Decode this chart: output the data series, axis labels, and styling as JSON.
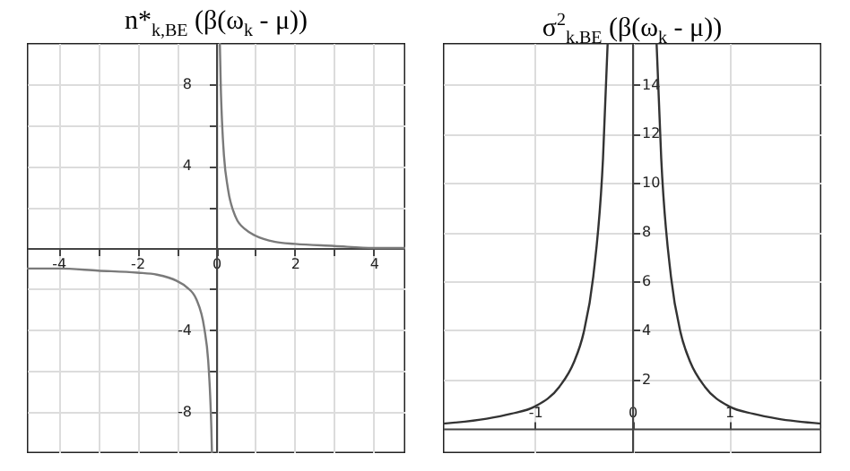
{
  "chart_data": [
    {
      "type": "line",
      "title": "n*$_{k,BE}$ (β(ω$_{k}$ - μ))",
      "xlim": [
        -4.8,
        4.8
      ],
      "ylim": [
        -10,
        10
      ],
      "xticks": [
        -4,
        {
          "value": -3,
          "label": null
        },
        -2,
        {
          "value": -1,
          "label": null
        },
        0,
        {
          "value": 1,
          "label": null
        },
        2,
        {
          "value": 3,
          "label": null
        },
        4
      ],
      "yticks": [
        -8,
        {
          "value": -6,
          "label": null
        },
        -4,
        {
          "value": -2,
          "label": null
        },
        {
          "value": 2,
          "label": null
        },
        4,
        {
          "value": 6,
          "label": null
        },
        8
      ],
      "grid": true,
      "series": [
        {
          "color": "#7a7a7a",
          "x": [
            -4.8,
            -4,
            -3,
            -2,
            -1.5,
            -1,
            -0.75,
            -0.5,
            -0.3,
            -0.2,
            -0.15,
            -0.12,
            -0.105
          ],
          "values": [
            -1,
            -1,
            -1.1,
            -1.2,
            -1.3,
            -1.6,
            -1.9,
            -2.5,
            -3.9,
            -5.5,
            -7.2,
            -8.8,
            -10
          ]
        },
        {
          "color": "#7a7a7a",
          "x": [
            0.095,
            0.12,
            0.15,
            0.2,
            0.3,
            0.5,
            0.75,
            1,
            1.5,
            2,
            3,
            4,
            4.8
          ],
          "values": [
            10,
            7.8,
            6.2,
            4.5,
            2.9,
            1.5,
            0.9,
            0.6,
            0.3,
            0.2,
            0.1,
            0,
            0
          ]
        }
      ]
    },
    {
      "type": "line",
      "title": "σ$^{2}$$_{k,BE}$ (β(ω$_{k}$ - μ))",
      "xlim": [
        -1.95,
        1.95
      ],
      "ylim": [
        -1,
        15.7
      ],
      "xticks": [
        -1,
        0,
        1
      ],
      "yticks": [
        2,
        4,
        6,
        8,
        10,
        12,
        14
      ],
      "grid": true,
      "series": [
        {
          "color": "#333333",
          "x": [
            -1.95,
            -1.5,
            -1.25,
            -1,
            -0.75,
            -0.6,
            -0.5,
            -0.4,
            -0.3,
            -0.252
          ],
          "values": [
            0.2,
            0.4,
            0.6,
            0.9,
            1.7,
            2.7,
            3.9,
            6.2,
            11,
            15.7
          ]
        },
        {
          "color": "#333333",
          "x": [
            0.252,
            0.3,
            0.4,
            0.5,
            0.6,
            0.75,
            1,
            1.25,
            1.5,
            1.95
          ],
          "values": [
            15.7,
            11,
            6.2,
            3.9,
            2.7,
            1.7,
            0.9,
            0.6,
            0.4,
            0.2
          ]
        }
      ]
    }
  ]
}
